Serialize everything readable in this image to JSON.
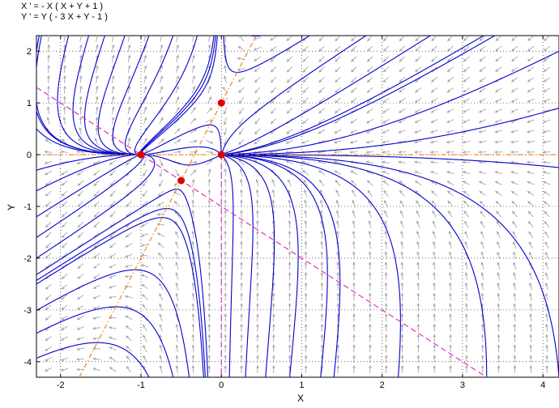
{
  "equations": {
    "xdot": "X ' = - X ( X + Y + 1 )",
    "ydot": "Y ' = Y ( - 3 X + Y - 1 )"
  },
  "chart_data": {
    "type": "phase_portrait",
    "xlabel": "X",
    "ylabel": "Y",
    "xlim": [
      -2.3,
      4.2
    ],
    "ylim": [
      -4.3,
      2.3
    ],
    "xticks": [
      -2,
      -1,
      0,
      1,
      2,
      3,
      4
    ],
    "yticks": [
      -4,
      -3,
      -2,
      -1,
      0,
      1,
      2
    ],
    "grid": true,
    "system": {
      "dx": "-X(X+Y+1)",
      "dy": "Y(-3X+Y-1)"
    },
    "equilibria": [
      {
        "x": -1,
        "y": 0
      },
      {
        "x": 0,
        "y": 0
      },
      {
        "x": 0,
        "y": 1
      },
      {
        "x": -0.5,
        "y": -0.5
      }
    ],
    "nullclines": [
      {
        "name": "x' = 0: X+Y+1 = 0",
        "style": "dashed",
        "color": "#e020c0",
        "points": [
          [
            -2.3,
            1.3
          ],
          [
            3.3,
            -4.3
          ]
        ]
      },
      {
        "name": "x' = 0: X = 0",
        "style": "dashed",
        "color": "#e020c0",
        "points": [
          [
            0,
            0
          ],
          [
            0,
            -4.3
          ]
        ]
      },
      {
        "name": "y' = 0: Y = 0",
        "style": "dash-dot",
        "color": "#f08000",
        "points": [
          [
            -2.3,
            0
          ],
          [
            4.2,
            0
          ]
        ]
      },
      {
        "name": "y' = 0: Y = 3X+1",
        "style": "dash-dot",
        "color": "#f08000",
        "points": [
          [
            -1.767,
            -4.3
          ],
          [
            0.433,
            2.3
          ]
        ]
      }
    ],
    "trajectory_seeds": [
      [
        -2.3,
        2.0
      ],
      [
        -2.3,
        1.0
      ],
      [
        -2.3,
        0.5
      ],
      [
        -2.3,
        -0.3
      ],
      [
        -2.3,
        -0.7
      ],
      [
        -2.3,
        -1.2
      ],
      [
        -2.3,
        -1.6
      ],
      [
        -2.3,
        -2.0
      ],
      [
        -2.3,
        -2.5
      ],
      [
        -1.9,
        2.3
      ],
      [
        -1.65,
        2.3
      ],
      [
        -1.45,
        2.3
      ],
      [
        -1.2,
        2.3
      ],
      [
        -0.9,
        2.3
      ],
      [
        -0.6,
        2.3
      ],
      [
        -0.3,
        2.3
      ],
      [
        -0.05,
        2.3
      ],
      [
        0.5,
        2.3
      ],
      [
        1.1,
        2.3
      ],
      [
        1.8,
        2.3
      ],
      [
        2.6,
        2.3
      ],
      [
        3.4,
        2.3
      ],
      [
        4.2,
        2.0
      ],
      [
        4.2,
        0.9
      ],
      [
        4.2,
        -0.25
      ],
      [
        4.2,
        -4.3
      ],
      [
        3.3,
        -4.3
      ],
      [
        2.2,
        -4.3
      ],
      [
        1.4,
        -4.3
      ],
      [
        0.85,
        -4.3
      ],
      [
        0.55,
        -4.3
      ],
      [
        0.3,
        -4.3
      ],
      [
        0.1,
        -4.3
      ],
      [
        -0.2,
        -4.3
      ],
      [
        -0.4,
        -4.3
      ],
      [
        -0.6,
        -4.3
      ],
      [
        -0.9,
        -4.3
      ],
      [
        -0.5,
        -0.7
      ],
      [
        -0.4,
        -0.2
      ],
      [
        -0.6,
        0.3
      ],
      [
        -0.3,
        0.15
      ],
      [
        0.4,
        0.12
      ],
      [
        0.6,
        -0.15
      ],
      [
        -0.25,
        1.3
      ],
      [
        -0.6,
        0.7
      ]
    ],
    "colors": {
      "trajectory": "#0000d0",
      "equilibrium": "#e00000",
      "field_arrow": "#a8a8a8",
      "grid": "#000000"
    }
  }
}
